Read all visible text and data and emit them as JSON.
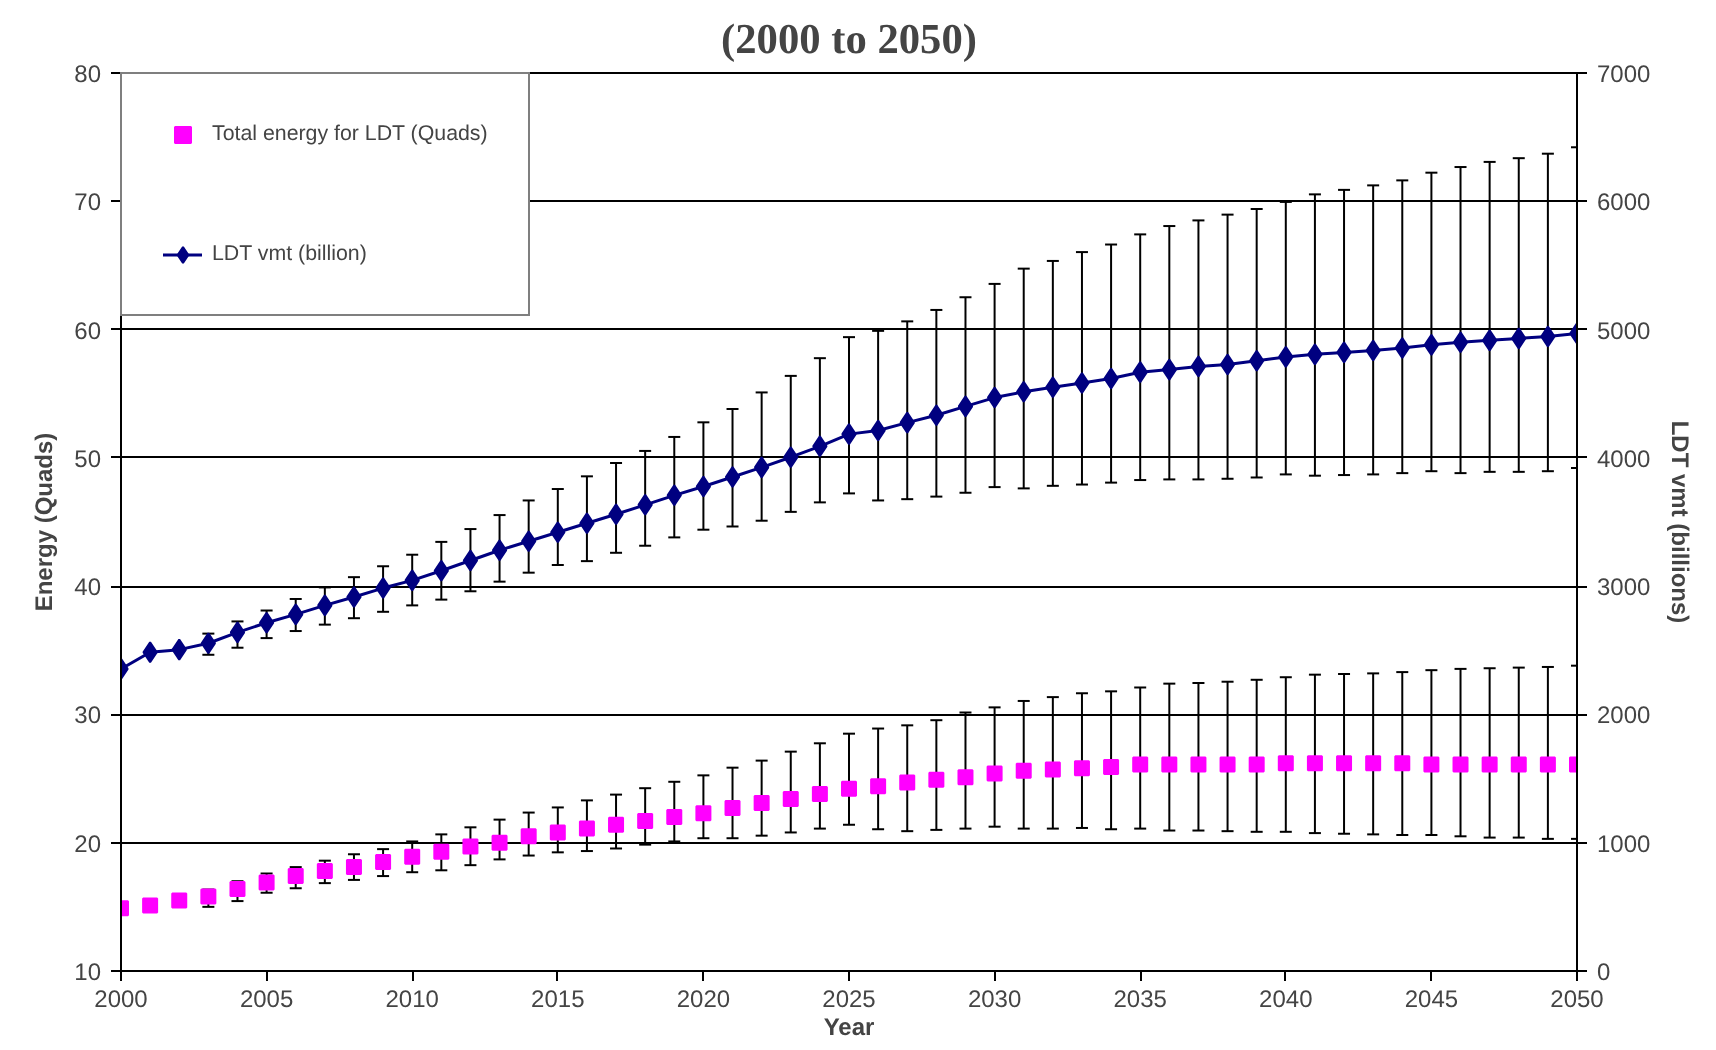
{
  "chart_data": {
    "type": "line",
    "title": "(2000 to 2050)",
    "xlabel": "Year",
    "ylabel": "Energy (Quads)",
    "y2label": "LDT vmt (billions)",
    "x": [
      2000,
      2001,
      2002,
      2003,
      2004,
      2005,
      2006,
      2007,
      2008,
      2009,
      2010,
      2011,
      2012,
      2013,
      2014,
      2015,
      2016,
      2017,
      2018,
      2019,
      2020,
      2021,
      2022,
      2023,
      2024,
      2025,
      2026,
      2027,
      2028,
      2029,
      2030,
      2031,
      2032,
      2033,
      2034,
      2035,
      2036,
      2037,
      2038,
      2039,
      2040,
      2041,
      2042,
      2043,
      2044,
      2045,
      2046,
      2047,
      2048,
      2049,
      2050
    ],
    "series": [
      {
        "name": "Total energy for LDT (Quads)",
        "type": "scatter",
        "marker": "square",
        "color": "#ff00ff",
        "values": [
          14.9,
          15.1,
          15.5,
          15.8,
          16.4,
          16.9,
          17.4,
          17.8,
          18.1,
          18.5,
          18.9,
          19.3,
          19.7,
          20.0,
          20.5,
          20.8,
          21.1,
          21.4,
          21.7,
          22.0,
          22.3,
          22.7,
          23.1,
          23.4,
          23.8,
          24.2,
          24.4,
          24.7,
          24.9,
          25.1,
          25.4,
          25.6,
          25.7,
          25.8,
          25.9,
          26.1,
          26.1,
          26.1,
          26.1,
          26.1,
          26.2,
          26.2,
          26.2,
          26.2,
          26.2,
          26.1,
          26.1,
          26.1,
          26.1,
          26.1,
          26.1
        ],
        "errors": [
          null,
          null,
          null,
          [
            15.0,
            16.35
          ],
          [
            15.45,
            17.0
          ],
          [
            16.1,
            17.6
          ],
          [
            16.45,
            18.1
          ],
          [
            16.85,
            18.6
          ],
          [
            17.1,
            19.1
          ],
          [
            17.4,
            19.5
          ],
          [
            17.7,
            20.1
          ],
          [
            17.85,
            20.65
          ],
          [
            18.25,
            21.2
          ],
          [
            18.7,
            21.8
          ],
          [
            19.0,
            22.35
          ],
          [
            19.25,
            22.75
          ],
          [
            19.35,
            23.3
          ],
          [
            19.55,
            23.75
          ],
          [
            19.85,
            24.25
          ],
          [
            20.1,
            24.75
          ],
          [
            20.35,
            25.25
          ],
          [
            20.35,
            25.85
          ],
          [
            20.55,
            26.4
          ],
          [
            20.8,
            27.1
          ],
          [
            21.1,
            27.75
          ],
          [
            21.4,
            28.5
          ],
          [
            21.05,
            28.9
          ],
          [
            20.9,
            29.15
          ],
          [
            21.0,
            29.55
          ],
          [
            21.1,
            30.15
          ],
          [
            21.25,
            30.55
          ],
          [
            21.1,
            31.05
          ],
          [
            21.1,
            31.35
          ],
          [
            21.15,
            31.65
          ],
          [
            21.05,
            31.8
          ],
          [
            21.1,
            32.1
          ],
          [
            20.95,
            32.4
          ],
          [
            20.95,
            32.45
          ],
          [
            20.9,
            32.55
          ],
          [
            20.85,
            32.7
          ],
          [
            20.85,
            32.9
          ],
          [
            20.75,
            33.1
          ],
          [
            20.7,
            33.15
          ],
          [
            20.65,
            33.2
          ],
          [
            20.6,
            33.3
          ],
          [
            20.6,
            33.45
          ],
          [
            20.5,
            33.55
          ],
          [
            20.4,
            33.6
          ],
          [
            20.4,
            33.65
          ],
          [
            20.3,
            33.7
          ],
          [
            20.3,
            33.8
          ]
        ]
      },
      {
        "name": "LDT vmt (billion)",
        "marker": "diamond",
        "line_style": "solid",
        "axis": "y2",
        "color": "#000080",
        "values": [
          2355,
          2485,
          2505,
          2555,
          2640,
          2715,
          2780,
          2850,
          2915,
          2985,
          3045,
          3120,
          3200,
          3280,
          3350,
          3420,
          3490,
          3560,
          3634,
          3708,
          3777,
          3851,
          3926,
          4005,
          4090,
          4185,
          4213,
          4275,
          4332,
          4401,
          4470,
          4515,
          4550,
          4584,
          4619,
          4668,
          4688,
          4713,
          4728,
          4757,
          4787,
          4807,
          4822,
          4837,
          4856,
          4881,
          4901,
          4916,
          4931,
          4946,
          4970
        ],
        "errors": [
          null,
          null,
          null,
          [
            2465,
            2630
          ],
          [
            2520,
            2725
          ],
          [
            2595,
            2810
          ],
          [
            2650,
            2900
          ],
          [
            2700,
            2990
          ],
          [
            2750,
            3070
          ],
          [
            2800,
            3155
          ],
          [
            2850,
            3245
          ],
          [
            2895,
            3345
          ],
          [
            2960,
            3445
          ],
          [
            3035,
            3554
          ],
          [
            3105,
            3668
          ],
          [
            3165,
            3757
          ],
          [
            3195,
            3856
          ],
          [
            3260,
            3960
          ],
          [
            3315,
            4054
          ],
          [
            3380,
            4163
          ],
          [
            3440,
            4277
          ],
          [
            3465,
            4381
          ],
          [
            3510,
            4510
          ],
          [
            3579,
            4639
          ],
          [
            3653,
            4777
          ],
          [
            3723,
            4941
          ],
          [
            3668,
            4990
          ],
          [
            3678,
            5064
          ],
          [
            3698,
            5153
          ],
          [
            3728,
            5252
          ],
          [
            3772,
            5356
          ],
          [
            3762,
            5475
          ],
          [
            3782,
            5535
          ],
          [
            3792,
            5604
          ],
          [
            3807,
            5663
          ],
          [
            3827,
            5742
          ],
          [
            3832,
            5807
          ],
          [
            3832,
            5851
          ],
          [
            3837,
            5896
          ],
          [
            3847,
            5940
          ],
          [
            3871,
            5995
          ],
          [
            3861,
            6054
          ],
          [
            3866,
            6089
          ],
          [
            3871,
            6124
          ],
          [
            3881,
            6163
          ],
          [
            3896,
            6223
          ],
          [
            3881,
            6267
          ],
          [
            3891,
            6307
          ],
          [
            3891,
            6336
          ],
          [
            3896,
            6371
          ],
          [
            3921,
            6421
          ]
        ]
      }
    ],
    "xlim": [
      2000,
      2050
    ],
    "xticks": [
      2000,
      2005,
      2010,
      2015,
      2020,
      2025,
      2030,
      2035,
      2040,
      2045,
      2050
    ],
    "ylim": [
      10,
      80
    ],
    "yticks": [
      10,
      20,
      30,
      40,
      50,
      60,
      70,
      80
    ],
    "y2lim": [
      0,
      7000
    ],
    "y2ticks": [
      0,
      1000,
      2000,
      3000,
      4000,
      5000,
      6000,
      7000
    ],
    "grid": "y",
    "legend": "top left"
  }
}
